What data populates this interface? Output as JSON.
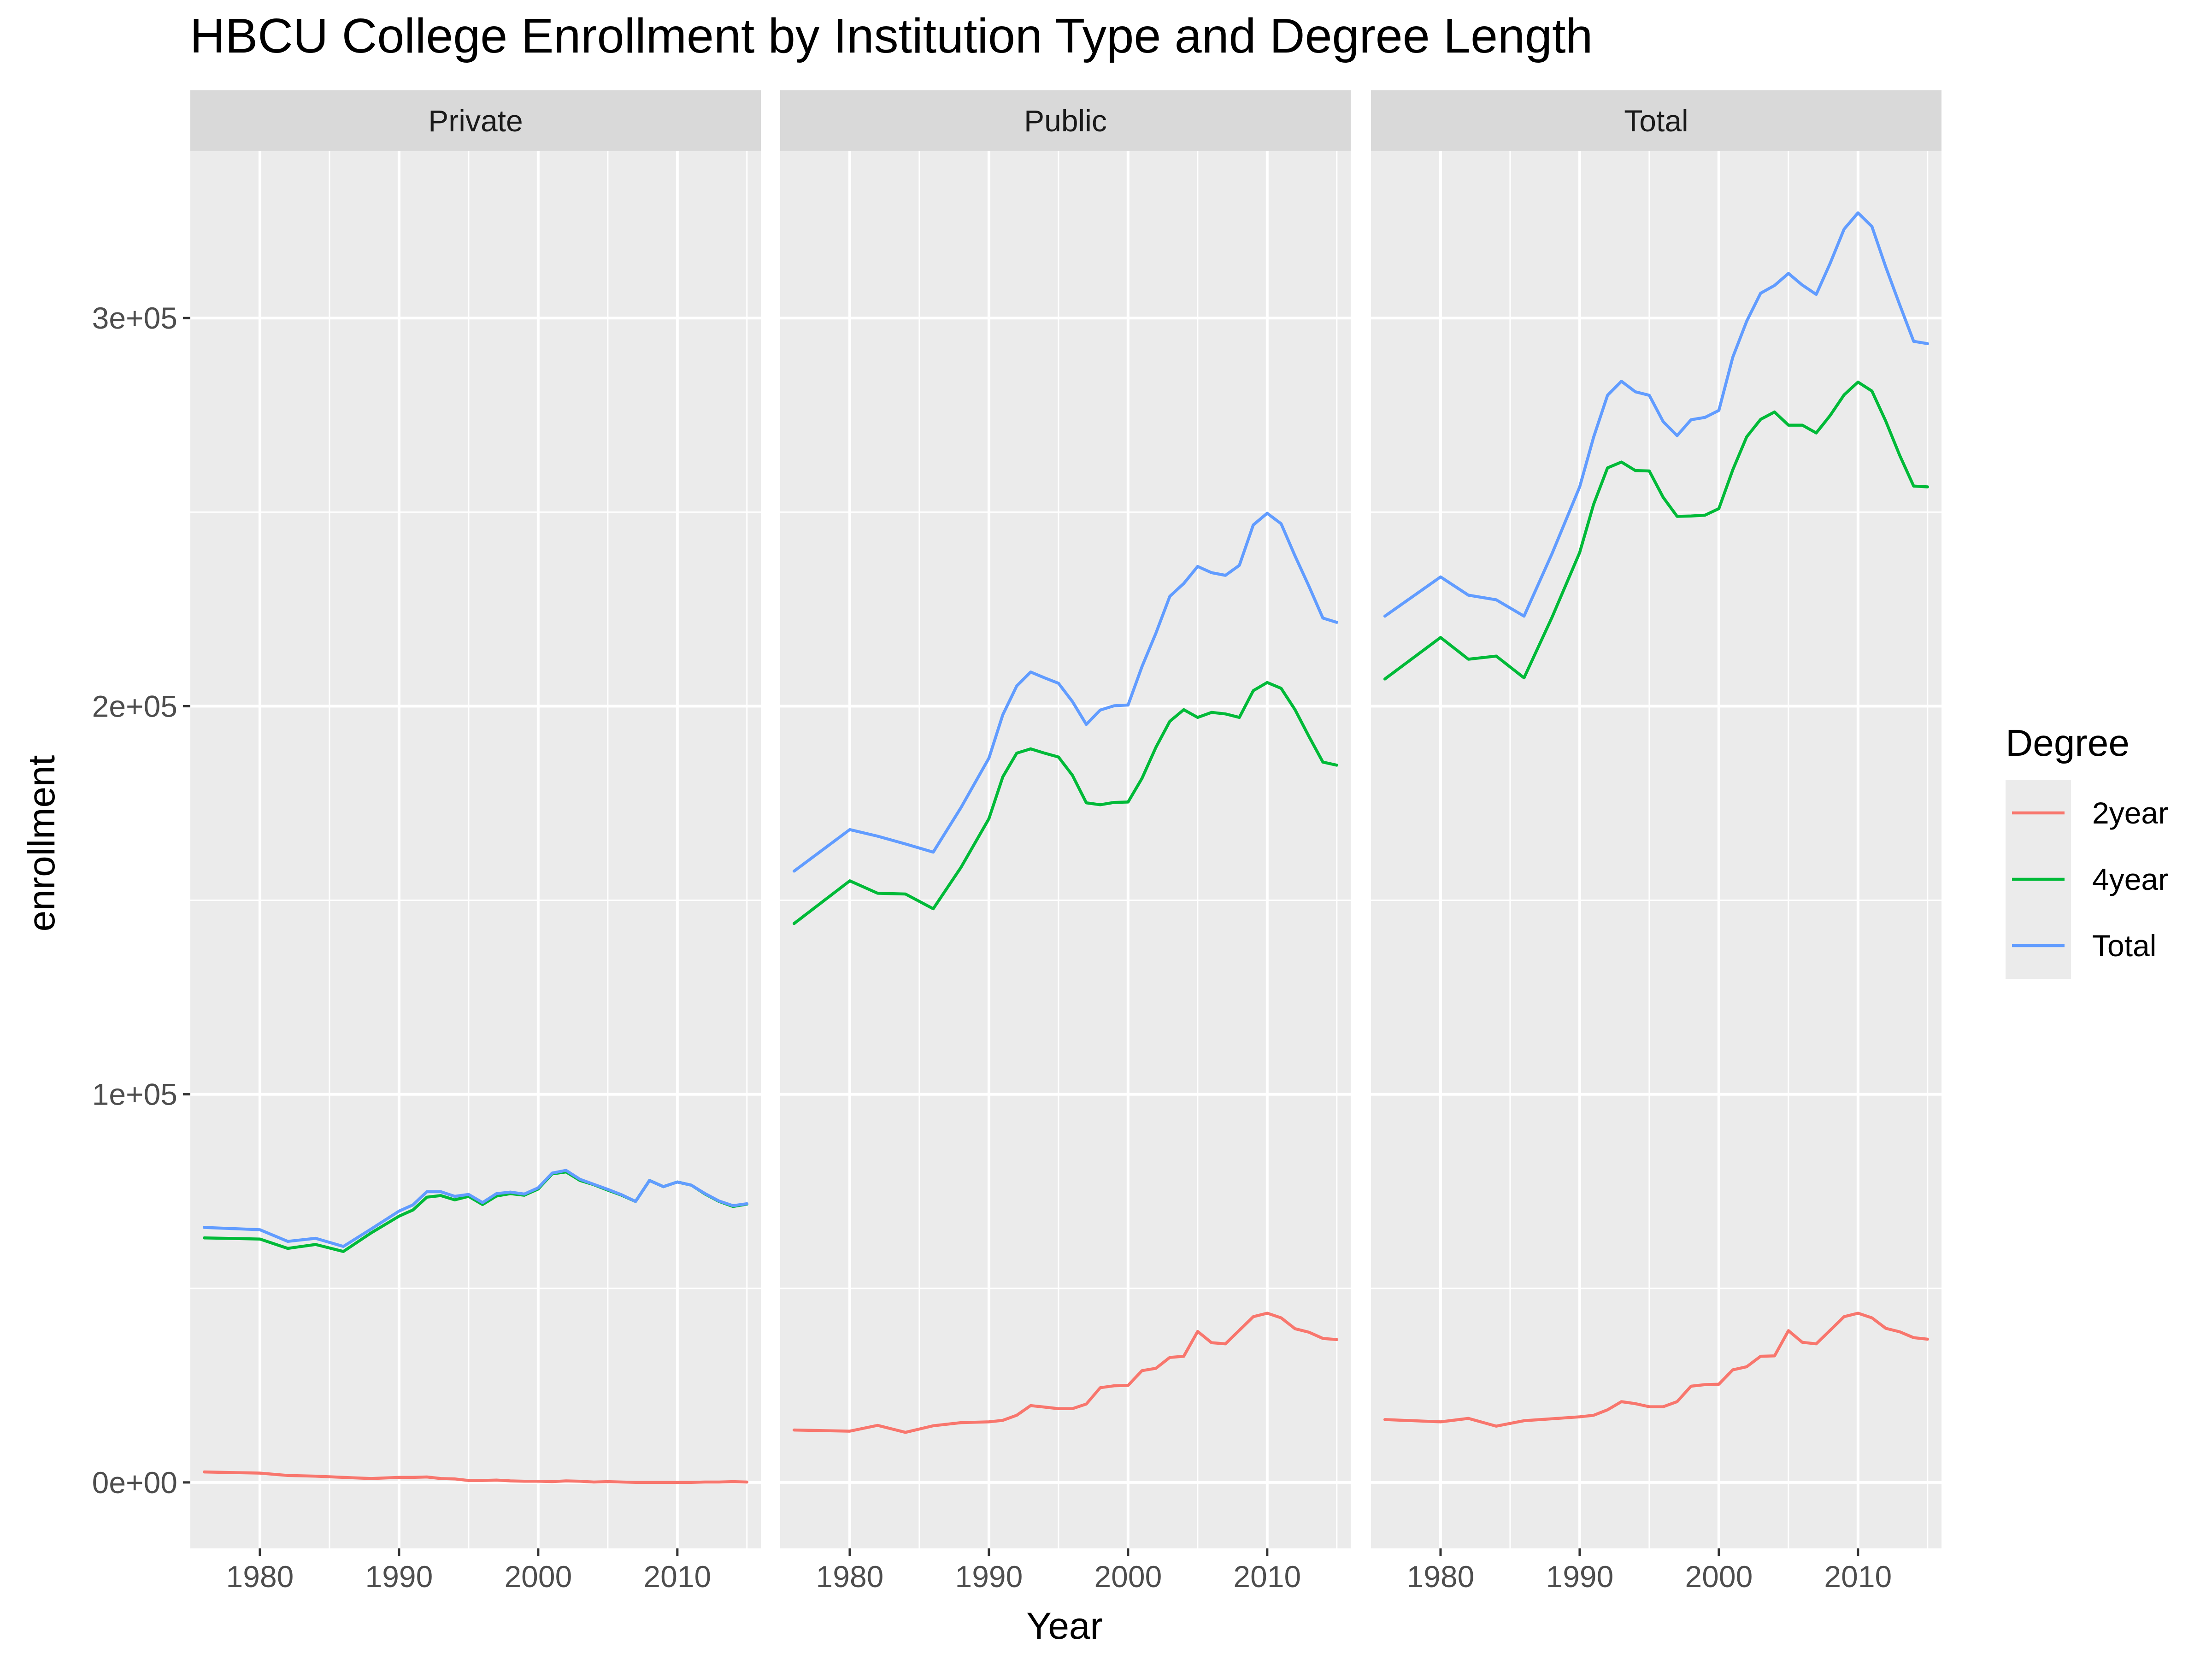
{
  "chart_data": {
    "type": "line",
    "title": "HBCU College Enrollment by Institution Type and Degree Length",
    "xlabel": "Year",
    "ylabel": "enrollment",
    "xlim": [
      1975,
      2016
    ],
    "ylim": [
      -17000,
      343000
    ],
    "x_ticks": [
      1980,
      1990,
      2000,
      2010
    ],
    "x_tick_labels": [
      "1980",
      "1990",
      "2000",
      "2010"
    ],
    "y_ticks": [
      0,
      100000,
      200000,
      300000
    ],
    "y_tick_labels": [
      "0e+00",
      "1e+05",
      "2e+05",
      "3e+05"
    ],
    "grid": true,
    "legend": {
      "title": "Degree",
      "position": "right",
      "entries": [
        "2year",
        "4year",
        "Total"
      ]
    },
    "colors": {
      "2year": "#F8766D",
      "4year": "#00BA38",
      "Total": "#619CFF",
      "panel_bg": "#EBEBEB",
      "strip_bg": "#D9D9D9",
      "grid": "#FFFFFF"
    },
    "x": [
      1976,
      1980,
      1982,
      1984,
      1986,
      1988,
      1990,
      1991,
      1992,
      1993,
      1994,
      1995,
      1996,
      1997,
      1998,
      1999,
      2000,
      2001,
      2002,
      2003,
      2004,
      2005,
      2006,
      2007,
      2008,
      2009,
      2010,
      2011,
      2012,
      2013,
      2014,
      2015
    ],
    "facets": [
      {
        "label": "Private",
        "series": [
          {
            "name": "2year",
            "values": [
              2700,
              2400,
              1800,
              1600,
              1300,
              1000,
              1300,
              1300,
              1400,
              1000,
              900,
              500,
              500,
              600,
              400,
              300,
              300,
              200,
              400,
              300,
              100,
              200,
              100,
              0,
              0,
              0,
              0,
              0,
              100,
              100,
              200,
              100
            ]
          },
          {
            "name": "4year",
            "values": [
              63000,
              62700,
              60300,
              61300,
              59500,
              64300,
              68600,
              70200,
              73500,
              73900,
              72800,
              73700,
              71600,
              73800,
              74400,
              74000,
              75600,
              79500,
              80000,
              77800,
              76700,
              75300,
              74000,
              72400,
              77800,
              76200,
              77400,
              76600,
              74300,
              72400,
              71100,
              71700
            ]
          },
          {
            "name": "Total",
            "values": [
              65700,
              65100,
              62100,
              62900,
              60800,
              65300,
              69900,
              71500,
              74900,
              74900,
              73700,
              74200,
              72100,
              74400,
              74800,
              74300,
              75900,
              79700,
              80400,
              78100,
              76800,
              75500,
              74100,
              72400,
              77800,
              76200,
              77400,
              76600,
              74400,
              72500,
              71300,
              71800
            ]
          }
        ]
      },
      {
        "label": "Public",
        "series": [
          {
            "name": "2year",
            "values": [
              13500,
              13200,
              14700,
              12900,
              14600,
              15400,
              15600,
              16000,
              17300,
              19800,
              19400,
              19000,
              19000,
              20200,
              24400,
              24900,
              25000,
              28800,
              29400,
              32200,
              32500,
              38900,
              36000,
              35700,
              39200,
              42700,
              43600,
              42400,
              39600,
              38700,
              37100,
              36800
            ]
          },
          {
            "name": "4year",
            "values": [
              144000,
              155000,
              151800,
              151600,
              147800,
              158500,
              171000,
              181800,
              187900,
              189000,
              187900,
              186900,
              182200,
              175100,
              174600,
              175200,
              175300,
              181400,
              189400,
              196100,
              199100,
              197100,
              198400,
              198000,
              197100,
              204000,
              206100,
              204600,
              199100,
              192200,
              185600,
              184800
            ]
          },
          {
            "name": "Total",
            "values": [
              157500,
              168200,
              166500,
              164500,
              162400,
              173900,
              186600,
              197800,
              205200,
              208800,
              207300,
              205900,
              201200,
              195300,
              199000,
              200100,
              200300,
              210200,
              218800,
              228300,
              231600,
              236000,
              234400,
              233700,
              236300,
              246700,
              249700,
              247000,
              238700,
              230900,
              222700,
              221600
            ]
          }
        ]
      },
      {
        "label": "Total",
        "series": [
          {
            "name": "2year",
            "values": [
              16200,
              15600,
              16500,
              14500,
              15900,
              16400,
              16900,
              17300,
              18700,
              20800,
              20300,
              19500,
              19500,
              20800,
              24800,
              25200,
              25300,
              29000,
              29800,
              32500,
              32600,
              39100,
              36100,
              35700,
              39200,
              42700,
              43600,
              42400,
              39700,
              38800,
              37300,
              36900
            ]
          },
          {
            "name": "4year",
            "values": [
              207000,
              217700,
              212100,
              212900,
              207300,
              222800,
              239600,
              252000,
              261400,
              262900,
              260700,
              260600,
              253800,
              248900,
              249000,
              249200,
              250900,
              260900,
              269400,
              273900,
              275800,
              272400,
              272400,
              270400,
              274900,
              280200,
              283500,
              281200,
              273400,
              264600,
              256700,
              256500
            ]
          },
          {
            "name": "Total",
            "values": [
              223200,
              233300,
              228600,
              227400,
              223200,
              239200,
              256500,
              269300,
              280100,
              283700,
              281000,
              280100,
              273300,
              269700,
              273800,
              274400,
              276200,
              289900,
              299200,
              306400,
              308400,
              311500,
              308500,
              306100,
              314100,
              322900,
              327100,
              323600,
              313100,
              303400,
              294000,
              293400
            ]
          }
        ]
      }
    ]
  }
}
